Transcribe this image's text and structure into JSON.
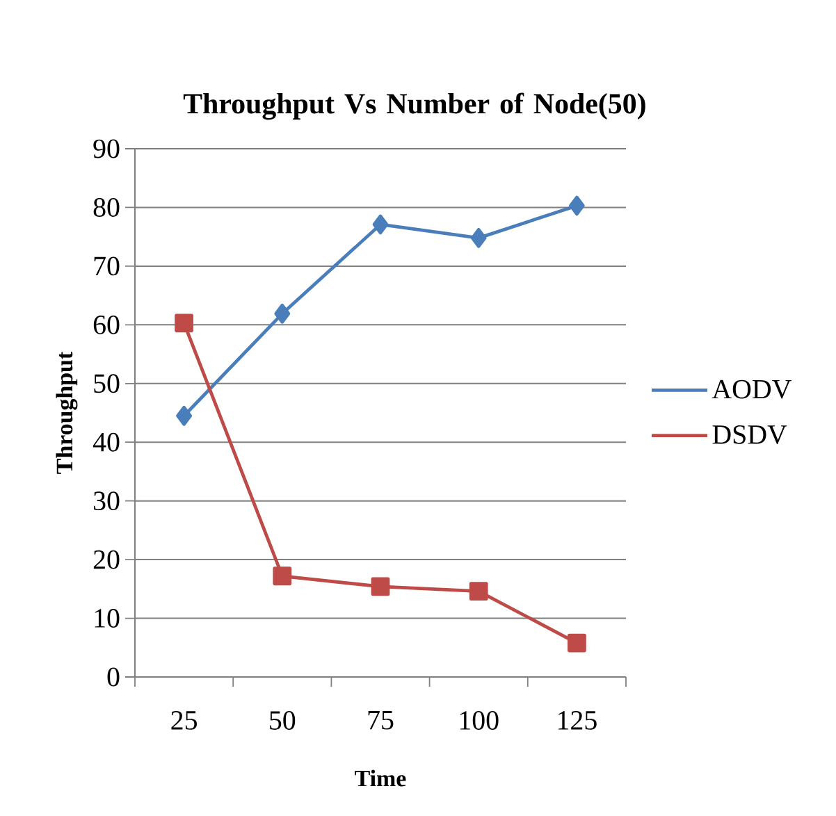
{
  "chart_data": {
    "type": "line",
    "title": "Throughput Vs Number of Node(50)",
    "xlabel": "Time",
    "ylabel": "Throughput",
    "categories": [
      "25",
      "50",
      "75",
      "100",
      "125"
    ],
    "series": [
      {
        "name": "AODV",
        "color": "#4a7ebb",
        "marker": "diamond",
        "values": [
          44.5,
          61.9,
          77.1,
          74.8,
          80.3
        ]
      },
      {
        "name": "DSDV",
        "color": "#be4b48",
        "marker": "square",
        "values": [
          60.3,
          17.2,
          15.4,
          14.6,
          5.8
        ]
      }
    ],
    "ylim": [
      0,
      90
    ],
    "yticks": [
      0,
      10,
      20,
      30,
      40,
      50,
      60,
      70,
      80,
      90
    ],
    "grid": "y",
    "legend": "right",
    "line_style": "solid"
  }
}
